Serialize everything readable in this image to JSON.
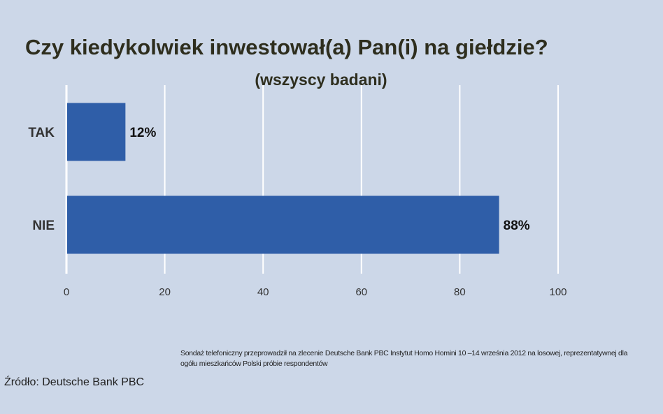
{
  "chart_data": {
    "type": "bar",
    "orientation": "horizontal",
    "title": "Czy kiedykolwiek inwestował(a) Pan(i) na giełdzie?",
    "subtitle": "(wszyscy badani)",
    "categories": [
      "TAK",
      "NIE"
    ],
    "values": [
      12,
      88
    ],
    "value_labels": [
      "12%",
      "88%"
    ],
    "xlim": [
      0,
      100
    ],
    "xticks": [
      0,
      20,
      40,
      60,
      80,
      100
    ],
    "grid": true,
    "bar_color": "#2f5ea8",
    "grid_color": "#ffffff"
  },
  "footnote": "Sondaż telefoniczny przeprowadził na zlecenie Deutsche Bank PBC Instytut Homo Homini 10 –14 września 2012 na losowej, reprezentatywnej dla ogółu mieszkańców Polski próbie respondentów",
  "source": "Źródło: Deutsche Bank PBC"
}
